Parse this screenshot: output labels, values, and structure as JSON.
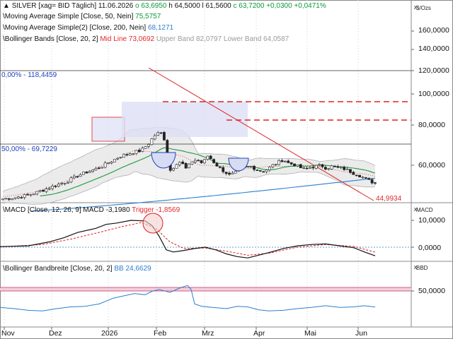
{
  "header": {
    "symbol": "SILVER [xag= BID Täglich]",
    "date": "11.06.2026",
    "open": "o 63,6950",
    "high": "h 64,5000",
    "low": "l 61,5600",
    "close": "c 63,7200",
    "change": "+0,0300",
    "change_pct": "+0,0471%"
  },
  "indicators": {
    "ma50_label": "Moving Average Simple [Close, 50, Nein]",
    "ma50_value": "75,5757",
    "ma200_label": "Moving Average Simple(2) [Close, 200, Nein]",
    "ma200_value": "68,1271",
    "bb_label": "Bollinger Bands [Close, 20, 2]",
    "bb_mid": "Mid Line 73,0692",
    "bb_upper": "Upper Band 82,0797",
    "bb_lower": "Lower Band 64,0587"
  },
  "annotations": {
    "fib0": "0,00% - 118,4459",
    "fib50": "50,00% - 69,7229",
    "trend_end": "44,9934"
  },
  "macd_panel": {
    "label": "MACD [Close, 12, 26, 9]",
    "value": "MACD -3,1980",
    "trigger": "Trigger -1,8569",
    "unit": "MACD"
  },
  "bbw_panel": {
    "label": "Bollinger Bandbreite [Close, 20, 2]",
    "value": "BB 24,6629",
    "unit": "BBD"
  },
  "main_unit": "$/Ozs",
  "controls": {
    "close": "x",
    "collapse": "^"
  },
  "colors": {
    "up": "#0a8a2a",
    "down": "#d02020",
    "ma50": "#1a9a3a",
    "ma200": "#2a7fd0",
    "bb_fill": "#e6e6e6",
    "bb_line": "#b0b0b0",
    "fib": "#1f3fbf",
    "resistance": "#e02020",
    "trendline": "#e02020",
    "macd": "#111111",
    "trigger": "#e02020",
    "bbw": "#2a7fd0",
    "highlight": "#dde0f5",
    "bbw_band": "#f4d0dc"
  },
  "chart_data": [
    {
      "type": "candlestick",
      "title": "SILVER [xag= BID Täglich]",
      "ylabel": "$/Ozs",
      "ylim": [
        40,
        170
      ],
      "y_ticks": [
        "160,0000",
        "140,0000",
        "120,0000",
        "100,0000",
        "80,0000",
        "60,0000"
      ],
      "x_ticks": [
        "Nov",
        "Dez",
        "2026",
        "Feb",
        "Mrz",
        "Apr",
        "Mai",
        "Jun"
      ],
      "levels": [
        {
          "name": "0,00%",
          "value": 118.4459
        },
        {
          "name": "50,00%",
          "value": 69.7229
        },
        {
          "name": "resistance-1",
          "value": 94.5
        },
        {
          "name": "resistance-2",
          "value": 83.2
        }
      ],
      "series": [
        {
          "name": "Moving Average Simple [Close, 50, Nein]",
          "last": 75.5757
        },
        {
          "name": "Moving Average Simple(2) [Close, 200, Nein]",
          "last": 68.1271
        },
        {
          "name": "Bollinger Bands [Close, 20, 2]",
          "mid": 73.0692,
          "upper": 82.0797,
          "lower": 64.0587
        }
      ],
      "last": {
        "open": 63.695,
        "high": 64.5,
        "low": 61.56,
        "close": 63.72
      }
    },
    {
      "type": "line",
      "title": "MACD [Close, 12, 26, 9]",
      "y_ticks": [
        "10,0000",
        "0,0000"
      ],
      "series": [
        {
          "name": "MACD",
          "last": -3.198
        },
        {
          "name": "Trigger",
          "last": -1.8569
        }
      ]
    },
    {
      "type": "line",
      "title": "Bollinger Bandbreite [Close, 20, 2]",
      "y_ticks": [
        "50,0000"
      ],
      "series": [
        {
          "name": "BB",
          "last": 24.6629
        }
      ]
    }
  ]
}
